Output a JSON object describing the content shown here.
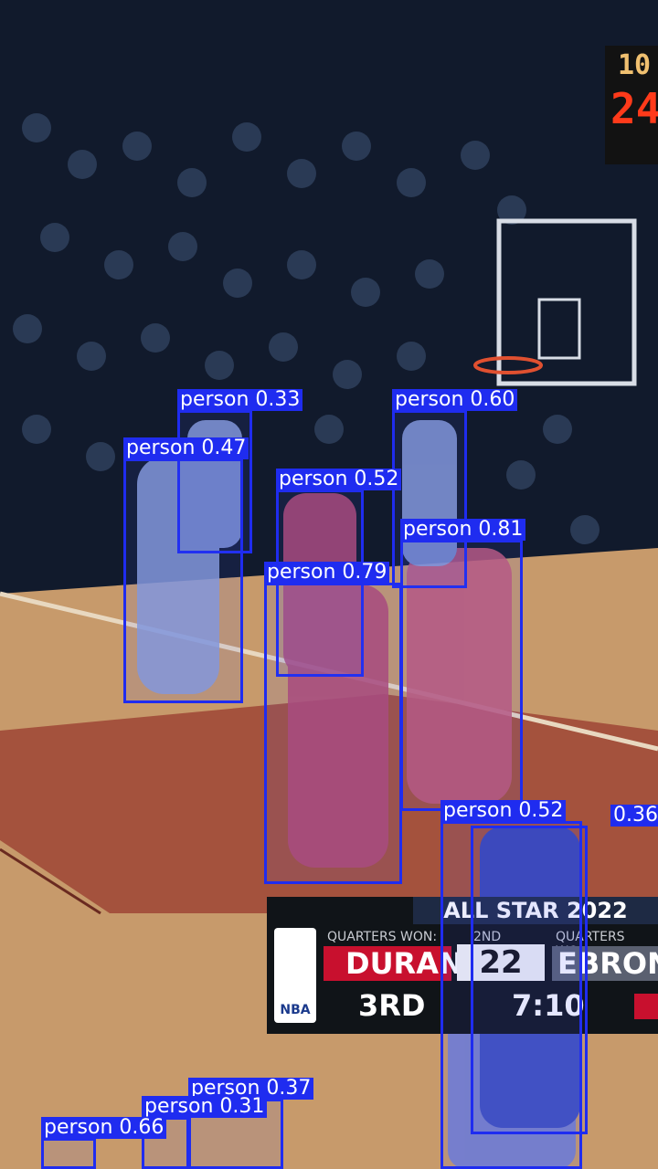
{
  "image": {
    "description_free": true
  },
  "detections": [
    {
      "label": "person 0.33"
    },
    {
      "label": "person 0.60"
    },
    {
      "label": "person 0.47"
    },
    {
      "label": "person 0.52"
    },
    {
      "label": "person 0.81"
    },
    {
      "label": "person 0.79"
    },
    {
      "label": "person 0.52"
    },
    {
      "label": "0.36"
    },
    {
      "label": "person 0.37"
    },
    {
      "label": "person 0.31"
    },
    {
      "label": "person 0.66"
    }
  ],
  "scoreboard": {
    "title": "ALL STAR 2022",
    "left_caption": "QUARTERS WON:",
    "mid_caption": "2ND",
    "right_caption": "QUARTERS WON",
    "team_left": "DURANT",
    "score": "22",
    "team_right": "EBRON",
    "quarter": "3RD",
    "clock": "7:10",
    "logo_text": "NBA"
  },
  "shot_clock": {
    "top": "10",
    "bottom": "24"
  },
  "colors": {
    "box": "#1f2cf0",
    "court": "#c79a6b",
    "paint": "#a4523d"
  }
}
